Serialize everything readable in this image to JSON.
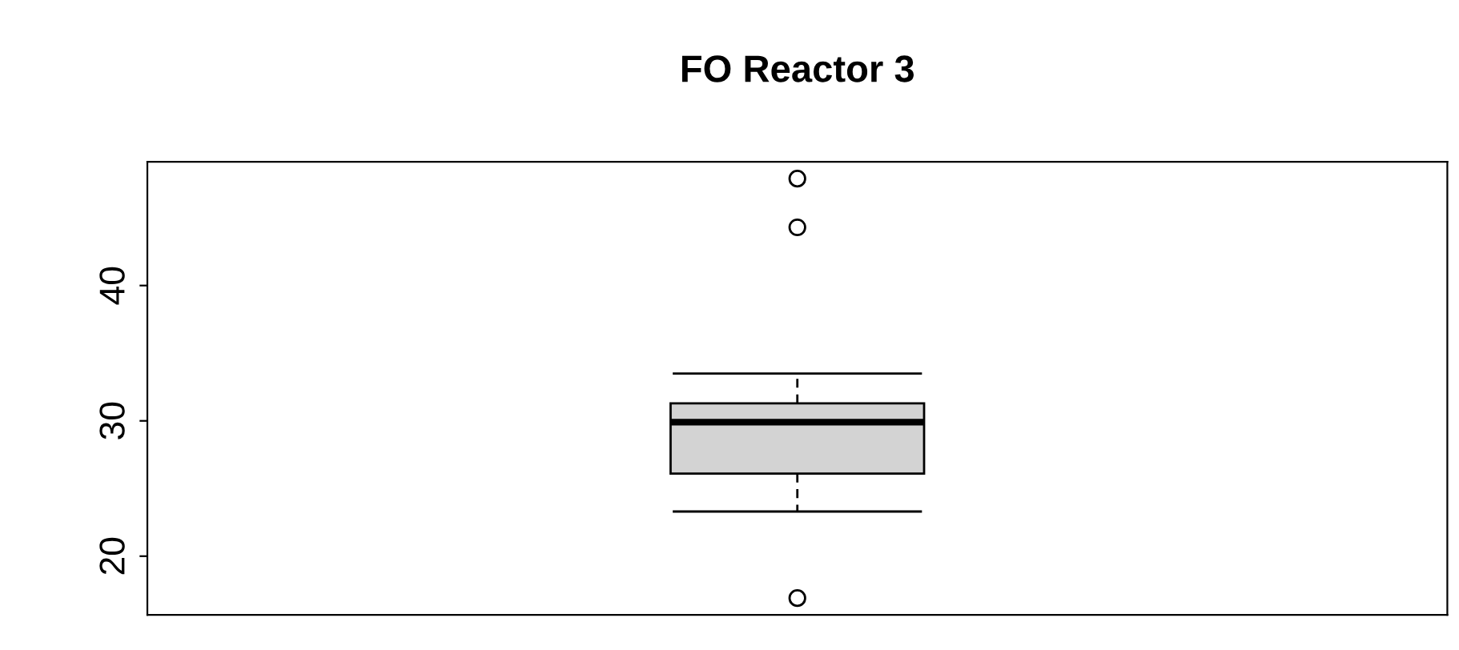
{
  "chart_data": {
    "type": "box",
    "title": "FO Reactor 3",
    "categories": [
      null
    ],
    "boxes": [
      {
        "low": 23.3,
        "q1": 26.1,
        "median": 29.9,
        "q3": 31.3,
        "high": 33.5,
        "outliers": [
          47.9,
          44.3,
          16.9
        ]
      }
    ],
    "color": "#d3d3d3",
    "ylim": [
      15.66,
      49.14
    ],
    "yticks": [
      20,
      30,
      40
    ],
    "grid": false,
    "legend": false
  }
}
